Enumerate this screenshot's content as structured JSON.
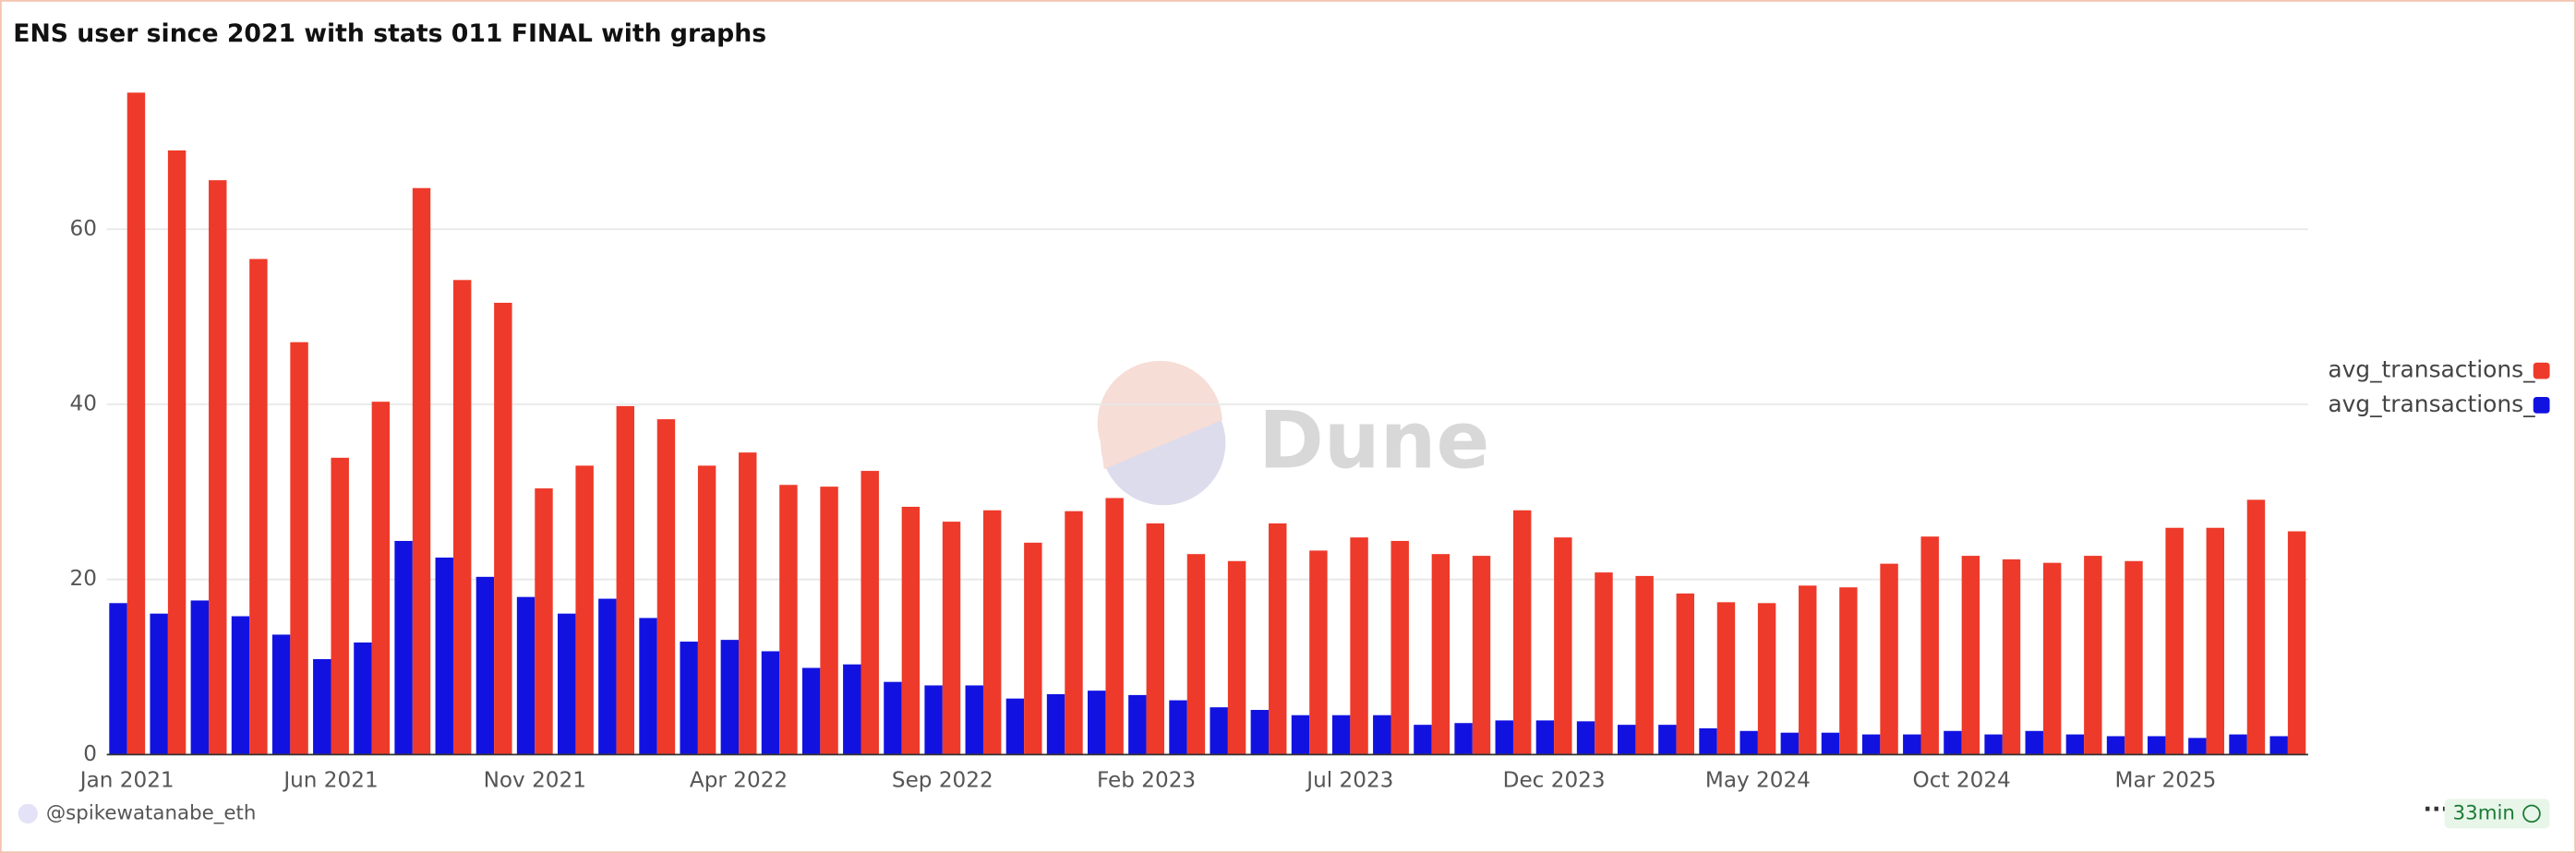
{
  "chart_data": {
    "type": "bar",
    "title": "ENS user since 2021 with stats 011 FINAL with graphs",
    "categories": [
      "Jan 2021",
      null,
      null,
      null,
      null,
      "Jun 2021",
      null,
      null,
      null,
      null,
      "Nov 2021",
      null,
      null,
      null,
      null,
      "Apr 2022",
      null,
      null,
      null,
      null,
      "Sep 2022",
      null,
      null,
      null,
      null,
      "Feb 2023",
      null,
      null,
      null,
      null,
      "Jul 2023",
      null,
      null,
      null,
      null,
      "Dec 2023",
      null,
      null,
      null,
      null,
      "May 2024",
      null,
      null,
      null,
      null,
      "Oct 2024",
      null,
      null,
      null,
      null,
      "Mar 2025",
      null,
      null,
      null
    ],
    "series": [
      {
        "name": "avg_transactions_",
        "color": "#ee3a2a",
        "values": [
          75.6,
          69.0,
          65.6,
          56.6,
          47.1,
          33.9,
          40.3,
          64.7,
          54.2,
          51.6,
          30.4,
          33.0,
          39.8,
          38.3,
          33.0,
          34.5,
          30.8,
          30.6,
          32.4,
          28.3,
          26.6,
          27.9,
          24.2,
          27.8,
          29.3,
          26.4,
          22.9,
          22.1,
          26.4,
          23.3,
          24.8,
          24.4,
          22.9,
          22.7,
          27.9,
          24.8,
          20.8,
          20.4,
          18.4,
          17.4,
          17.3,
          19.3,
          19.1,
          21.8,
          24.9,
          22.7,
          22.3,
          21.9,
          22.7,
          22.1,
          25.9,
          25.9,
          29.1,
          25.5
        ]
      },
      {
        "name": "avg_transactions_",
        "color": "#1212e0",
        "values": [
          17.3,
          16.1,
          17.6,
          15.8,
          13.7,
          10.9,
          12.8,
          24.4,
          22.5,
          20.3,
          18.0,
          16.1,
          17.8,
          15.6,
          12.9,
          13.1,
          11.8,
          9.9,
          10.3,
          8.3,
          7.9,
          7.9,
          6.4,
          6.9,
          7.3,
          6.8,
          6.2,
          5.4,
          5.1,
          4.5,
          4.5,
          4.5,
          3.4,
          3.6,
          3.9,
          3.9,
          3.8,
          3.4,
          3.4,
          3.0,
          2.7,
          2.5,
          2.5,
          2.3,
          2.3,
          2.7,
          2.3,
          2.7,
          2.3,
          2.1,
          2.1,
          1.9,
          2.3,
          2.1
        ]
      }
    ],
    "ylim": [
      0,
      77
    ],
    "yticks": [
      0,
      20,
      40,
      60
    ],
    "grid": true,
    "legend": "right"
  },
  "watermark": "Dune",
  "footer": {
    "user": "@spikewatanabe_eth",
    "refresh": "33min"
  }
}
